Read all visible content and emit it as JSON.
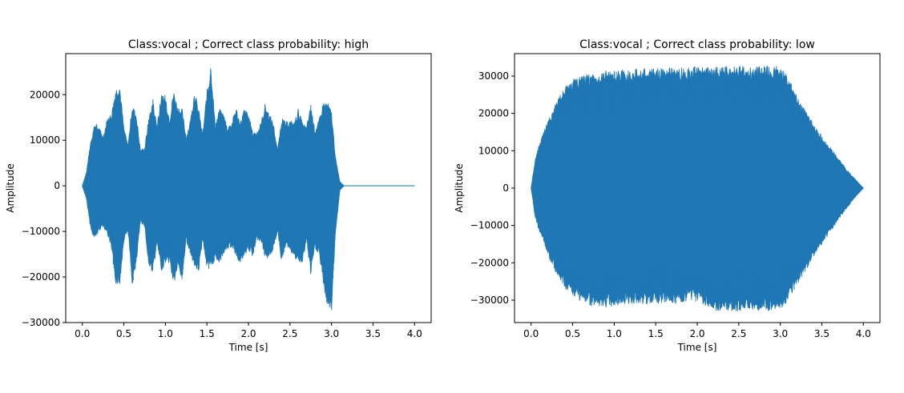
{
  "chart_data": [
    {
      "type": "area",
      "title": "Class:vocal ; Correct class probability: high",
      "xlabel": "Time [s]",
      "ylabel": "Amplitude",
      "xlim": [
        -0.2,
        4.2
      ],
      "ylim": [
        -30000,
        29000
      ],
      "xticks": [
        0.0,
        0.5,
        1.0,
        1.5,
        2.0,
        2.5,
        3.0,
        3.5,
        4.0
      ],
      "xtick_labels": [
        "0.0",
        "0.5",
        "1.0",
        "1.5",
        "2.0",
        "2.5",
        "3.0",
        "3.5",
        "4.0"
      ],
      "yticks": [
        -30000,
        -20000,
        -10000,
        0,
        10000,
        20000
      ],
      "ytick_labels": [
        "−30000",
        "−20000",
        "−10000",
        "0",
        "10000",
        "20000"
      ],
      "grid": false,
      "color": "#1f77b4",
      "envelope": {
        "x": [
          0.0,
          0.05,
          0.1,
          0.15,
          0.2,
          0.25,
          0.3,
          0.35,
          0.4,
          0.45,
          0.5,
          0.55,
          0.6,
          0.65,
          0.7,
          0.75,
          0.8,
          0.85,
          0.9,
          0.95,
          1.0,
          1.05,
          1.1,
          1.15,
          1.2,
          1.25,
          1.3,
          1.35,
          1.4,
          1.45,
          1.5,
          1.55,
          1.6,
          1.65,
          1.7,
          1.75,
          1.8,
          1.85,
          1.9,
          1.95,
          2.0,
          2.05,
          2.1,
          2.15,
          2.2,
          2.25,
          2.3,
          2.35,
          2.4,
          2.45,
          2.5,
          2.55,
          2.6,
          2.65,
          2.7,
          2.75,
          2.8,
          2.85,
          2.9,
          2.95,
          3.0,
          3.05,
          3.1,
          3.15,
          3.2,
          4.0
        ],
        "upper": [
          0,
          3000,
          10000,
          14000,
          13000,
          11000,
          15000,
          16000,
          21500,
          22500,
          13000,
          9000,
          18000,
          16000,
          8000,
          8500,
          15000,
          19000,
          13500,
          20000,
          20000,
          15000,
          21000,
          17500,
          17000,
          11000,
          14500,
          21000,
          17000,
          11500,
          21000,
          26500,
          13500,
          17000,
          16000,
          13000,
          14000,
          17500,
          14000,
          17000,
          16000,
          12000,
          12000,
          14000,
          18000,
          16000,
          14000,
          8000,
          15000,
          14000,
          14500,
          14000,
          17000,
          14000,
          13000,
          18000,
          12500,
          14500,
          18500,
          18500,
          16500,
          6000,
          1000,
          0,
          0,
          0
        ],
        "lower": [
          0,
          -3000,
          -9500,
          -12000,
          -10000,
          -9000,
          -10500,
          -14000,
          -21500,
          -22000,
          -12000,
          -10000,
          -22000,
          -17500,
          -8000,
          -9000,
          -18000,
          -19000,
          -13000,
          -19000,
          -17000,
          -17000,
          -22000,
          -18000,
          -21000,
          -12000,
          -15000,
          -18000,
          -19000,
          -12000,
          -18000,
          -18500,
          -16000,
          -17000,
          -15000,
          -14000,
          -13500,
          -15500,
          -17000,
          -16000,
          -14000,
          -16000,
          -12000,
          -12000,
          -16000,
          -16000,
          -14000,
          -10000,
          -17000,
          -13000,
          -14000,
          -16000,
          -17000,
          -17000,
          -12000,
          -20000,
          -14000,
          -15000,
          -22000,
          -26500,
          -27500,
          -10000,
          -1000,
          0,
          0,
          0
        ]
      }
    },
    {
      "type": "area",
      "title": "Class:vocal ; Correct class probability: low",
      "xlabel": "Time [s]",
      "ylabel": "Amplitude",
      "xlim": [
        -0.2,
        4.2
      ],
      "ylim": [
        -36000,
        36000
      ],
      "xticks": [
        0.0,
        0.5,
        1.0,
        1.5,
        2.0,
        2.5,
        3.0,
        3.5,
        4.0
      ],
      "xtick_labels": [
        "0.0",
        "0.5",
        "1.0",
        "1.5",
        "2.0",
        "2.5",
        "3.0",
        "3.5",
        "4.0"
      ],
      "yticks": [
        -30000,
        -20000,
        -10000,
        0,
        10000,
        20000,
        30000
      ],
      "ytick_labels": [
        "−30000",
        "−20000",
        "−10000",
        "0",
        "10000",
        "20000",
        "30000"
      ],
      "grid": false,
      "color": "#1f77b4",
      "envelope": {
        "x": [
          0.0,
          0.05,
          0.1,
          0.2,
          0.3,
          0.4,
          0.5,
          0.6,
          0.7,
          0.8,
          0.9,
          1.0,
          1.2,
          1.4,
          1.6,
          1.8,
          2.0,
          2.2,
          2.4,
          2.6,
          2.8,
          3.0,
          3.1,
          3.2,
          3.3,
          3.4,
          3.5,
          3.6,
          3.7,
          3.8,
          3.9,
          4.0
        ],
        "upper": [
          0,
          8000,
          12000,
          18000,
          23000,
          27000,
          29000,
          30000,
          30500,
          31000,
          31500,
          31500,
          32000,
          32000,
          32200,
          32400,
          32500,
          32600,
          32700,
          32700,
          32700,
          32700,
          30000,
          25000,
          21000,
          17500,
          14000,
          11000,
          8000,
          5000,
          2500,
          0
        ],
        "lower": [
          0,
          -8000,
          -12000,
          -18000,
          -23000,
          -26500,
          -29000,
          -30500,
          -31500,
          -32000,
          -32000,
          -31500,
          -31000,
          -31000,
          -31000,
          -31000,
          -30500,
          -33000,
          -33000,
          -33000,
          -33000,
          -33000,
          -30000,
          -26000,
          -22500,
          -18500,
          -15000,
          -12000,
          -8500,
          -5500,
          -2500,
          0
        ]
      }
    }
  ]
}
